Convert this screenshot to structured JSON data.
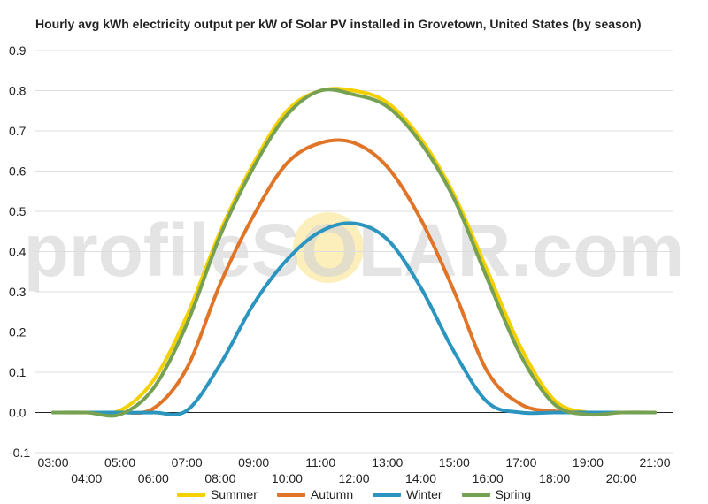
{
  "chart_data": {
    "type": "line",
    "title": "Hourly avg kWh electricity output per kW of Solar PV installed in Grovetown, United States (by season)",
    "xlabel": "",
    "ylabel": "",
    "ylim": [
      -0.1,
      0.9
    ],
    "yticks": [
      "-0.1",
      "0.0",
      "0.1",
      "0.2",
      "0.3",
      "0.4",
      "0.5",
      "0.6",
      "0.7",
      "0.8",
      "0.9"
    ],
    "xticks_top": [
      "03:00",
      "05:00",
      "07:00",
      "09:00",
      "11:00",
      "13:00",
      "15:00",
      "17:00",
      "19:00",
      "21:00"
    ],
    "xticks_bottom": [
      "04:00",
      "06:00",
      "08:00",
      "10:00",
      "12:00",
      "14:00",
      "16:00",
      "18:00",
      "20:00"
    ],
    "x": [
      "03:00",
      "04:00",
      "05:00",
      "06:00",
      "07:00",
      "08:00",
      "09:00",
      "10:00",
      "11:00",
      "12:00",
      "13:00",
      "14:00",
      "15:00",
      "16:00",
      "17:00",
      "18:00",
      "19:00",
      "20:00",
      "21:00"
    ],
    "grid": true,
    "legend_position": "bottom",
    "watermark": "profileSOLAR.com",
    "series": [
      {
        "name": "Summer",
        "color": "#f5d000",
        "values": [
          0.0,
          0.0,
          0.005,
          0.08,
          0.24,
          0.45,
          0.62,
          0.75,
          0.8,
          0.8,
          0.77,
          0.68,
          0.54,
          0.35,
          0.16,
          0.03,
          0.0,
          0.0,
          0.0
        ]
      },
      {
        "name": "Autumn",
        "color": "#e07427",
        "values": [
          0.0,
          0.0,
          0.0,
          0.01,
          0.11,
          0.32,
          0.49,
          0.62,
          0.67,
          0.67,
          0.61,
          0.48,
          0.3,
          0.1,
          0.02,
          0.003,
          0.0,
          0.0,
          0.0
        ]
      },
      {
        "name": "Winter",
        "color": "#2b95bf",
        "values": [
          0.0,
          0.0,
          0.0,
          0.0,
          0.005,
          0.12,
          0.27,
          0.38,
          0.45,
          0.47,
          0.43,
          0.31,
          0.15,
          0.025,
          0.0,
          0.0,
          0.0,
          0.0,
          0.0
        ]
      },
      {
        "name": "Spring",
        "color": "#76a153",
        "values": [
          0.0,
          0.0,
          -0.005,
          0.06,
          0.22,
          0.44,
          0.61,
          0.74,
          0.8,
          0.79,
          0.76,
          0.67,
          0.53,
          0.33,
          0.14,
          0.02,
          -0.005,
          0.0,
          0.0
        ]
      }
    ]
  }
}
